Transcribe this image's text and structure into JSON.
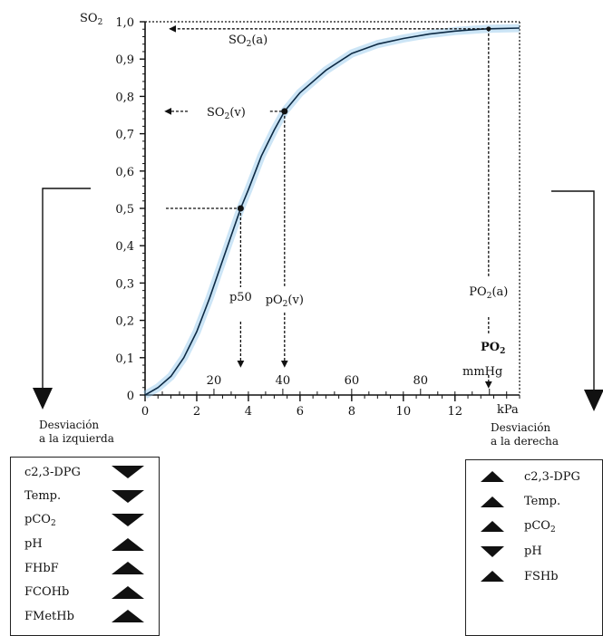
{
  "chart_data": {
    "type": "line",
    "ylabel_main": "SO",
    "ylabel_sub": "2",
    "xlabel_unit": "kPa",
    "alt_unit_main": "PO",
    "alt_unit_sub": "2",
    "alt_unit_mmhg": "mmHg",
    "y_ticks": [
      "0",
      "0,1",
      "0,2",
      "0,3",
      "0,4",
      "0,5",
      "0,6",
      "0,7",
      "0,8",
      "0,9",
      "1,0"
    ],
    "x_ticks_kpa": [
      "0",
      "2",
      "4",
      "6",
      "8",
      "10",
      "12"
    ],
    "x_ticks_mmhg": [
      "20",
      "40",
      "60",
      "80"
    ],
    "xlim_kpa": [
      0,
      14.5
    ],
    "ylim": [
      0,
      1.0
    ],
    "series": [
      {
        "x": [
          0,
          0.5,
          1,
          1.5,
          2,
          2.5,
          3,
          3.5,
          3.7,
          4,
          4.5,
          5,
          5.4,
          6,
          7,
          8,
          9,
          10,
          11,
          12,
          13,
          13.3,
          14.5
        ],
        "y": [
          0,
          0.02,
          0.05,
          0.1,
          0.17,
          0.26,
          0.36,
          0.46,
          0.5,
          0.55,
          0.64,
          0.71,
          0.76,
          0.81,
          0.87,
          0.915,
          0.94,
          0.955,
          0.967,
          0.975,
          0.98,
          0.981,
          0.983
        ]
      }
    ],
    "annotations": {
      "so2a": {
        "main": "SO",
        "sub": "2",
        "tail": "(a)"
      },
      "so2v": {
        "main": "SO",
        "sub": "2",
        "tail": "(v)"
      },
      "p50": {
        "text": "p50"
      },
      "po2v": {
        "main": "pO",
        "sub": "2",
        "tail": "(v)"
      },
      "po2a": {
        "main": "PO",
        "sub": "2",
        "tail": "(a)"
      }
    },
    "points": {
      "p50": {
        "x": 3.7,
        "y": 0.5
      },
      "venous": {
        "x": 5.4,
        "y": 0.76
      },
      "arterial": {
        "x": 13.3,
        "y": 0.981
      }
    }
  },
  "left_shift": {
    "title_line1": "Desviación",
    "title_line2": "a la izquierda",
    "rows": [
      {
        "main": "c2,3-DPG",
        "sub": "",
        "dir": "down"
      },
      {
        "main": "Temp.",
        "sub": "",
        "dir": "down"
      },
      {
        "main": "pCO",
        "sub": "2",
        "dir": "down"
      },
      {
        "main": "pH",
        "sub": "",
        "dir": "up"
      },
      {
        "main": "FHbF",
        "sub": "",
        "dir": "up"
      },
      {
        "main": "FCOHb",
        "sub": "",
        "dir": "up"
      },
      {
        "main": "FMetHb",
        "sub": "",
        "dir": "up"
      }
    ]
  },
  "right_shift": {
    "title_line1": "Desviación",
    "title_line2": "a la derecha",
    "rows": [
      {
        "main": "c2,3-DPG",
        "sub": "",
        "dir": "up"
      },
      {
        "main": "Temp.",
        "sub": "",
        "dir": "up"
      },
      {
        "main": "pCO",
        "sub": "2",
        "dir": "up"
      },
      {
        "main": "pH",
        "sub": "",
        "dir": "down"
      },
      {
        "main": "FSHb",
        "sub": "",
        "dir": "up"
      }
    ]
  }
}
